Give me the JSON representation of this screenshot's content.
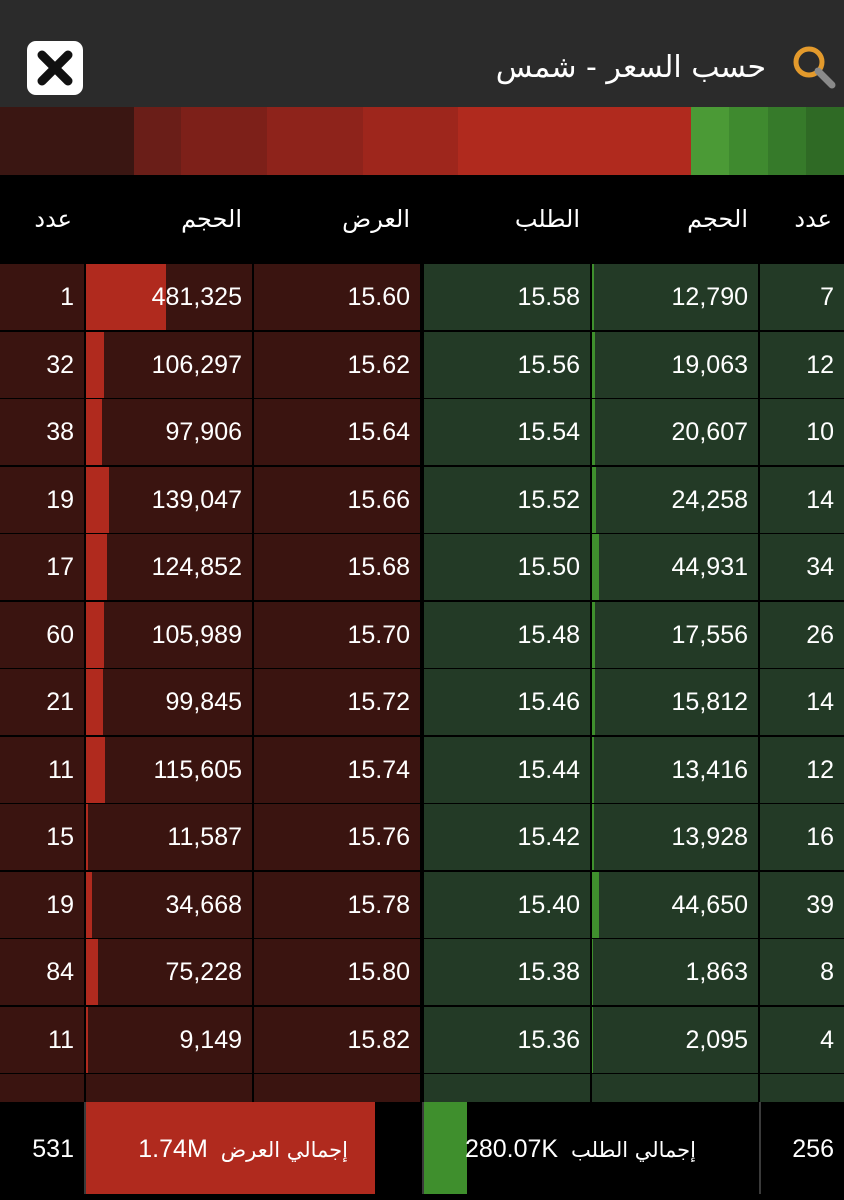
{
  "header": {
    "title": "حسب السعر -  شمس",
    "close_icon": "close-icon",
    "search_icon": "search-icon"
  },
  "colors": {
    "ask_bg": "#3a1410",
    "ask_bar": "#b02a1e",
    "bid_bg": "#233a26",
    "bid_bar": "#3f8f2d"
  },
  "columns": {
    "ask_count": "عدد",
    "ask_volume": "الحجم",
    "ask_price": "العرض",
    "bid_price": "الطلب",
    "bid_volume": "الحجم",
    "bid_count": "عدد"
  },
  "rows": [
    {
      "ask_count": "1",
      "ask_volume": "481,325",
      "ask_price": "15.60",
      "bid_price": "15.58",
      "bid_volume": "12,790",
      "bid_count": "7"
    },
    {
      "ask_count": "32",
      "ask_volume": "106,297",
      "ask_price": "15.62",
      "bid_price": "15.56",
      "bid_volume": "19,063",
      "bid_count": "12"
    },
    {
      "ask_count": "38",
      "ask_volume": "97,906",
      "ask_price": "15.64",
      "bid_price": "15.54",
      "bid_volume": "20,607",
      "bid_count": "10"
    },
    {
      "ask_count": "19",
      "ask_volume": "139,047",
      "ask_price": "15.66",
      "bid_price": "15.52",
      "bid_volume": "24,258",
      "bid_count": "14"
    },
    {
      "ask_count": "17",
      "ask_volume": "124,852",
      "ask_price": "15.68",
      "bid_price": "15.50",
      "bid_volume": "44,931",
      "bid_count": "34"
    },
    {
      "ask_count": "60",
      "ask_volume": "105,989",
      "ask_price": "15.70",
      "bid_price": "15.48",
      "bid_volume": "17,556",
      "bid_count": "26"
    },
    {
      "ask_count": "21",
      "ask_volume": "99,845",
      "ask_price": "15.72",
      "bid_price": "15.46",
      "bid_volume": "15,812",
      "bid_count": "14"
    },
    {
      "ask_count": "11",
      "ask_volume": "115,605",
      "ask_price": "15.74",
      "bid_price": "15.44",
      "bid_volume": "13,416",
      "bid_count": "12"
    },
    {
      "ask_count": "15",
      "ask_volume": "11,587",
      "ask_price": "15.76",
      "bid_price": "15.42",
      "bid_volume": "13,928",
      "bid_count": "16"
    },
    {
      "ask_count": "19",
      "ask_volume": "34,668",
      "ask_price": "15.78",
      "bid_price": "15.40",
      "bid_volume": "44,650",
      "bid_count": "39"
    },
    {
      "ask_count": "84",
      "ask_volume": "75,228",
      "ask_price": "15.80",
      "bid_price": "15.38",
      "bid_volume": "1,863",
      "bid_count": "8"
    },
    {
      "ask_count": "11",
      "ask_volume": "9,149",
      "ask_price": "15.82",
      "bid_price": "15.36",
      "bid_volume": "2,095",
      "bid_count": "4"
    },
    {
      "ask_count": "",
      "ask_volume": "",
      "ask_price": "",
      "bid_price": "",
      "bid_volume": "",
      "bid_count": ""
    }
  ],
  "footer": {
    "ask_count_total": "531",
    "ask_total_label": "إجمالي العرض",
    "ask_total_value": "1.74M",
    "bid_total_label": "إجمالي الطلب",
    "bid_total_value": "280.07K",
    "bid_count_total": "256"
  }
}
